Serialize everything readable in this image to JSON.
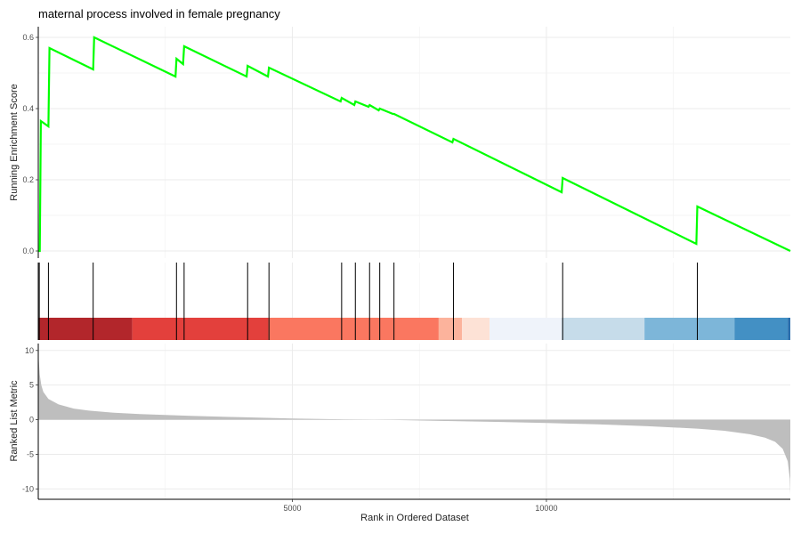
{
  "chart_data": {
    "type": "line",
    "title": "maternal process involved in female pregnancy",
    "xlabel": "Rank in Ordered Dataset",
    "x_range": [
      0,
      14800
    ],
    "x_ticks": [
      5000,
      10000
    ],
    "x_tick_labels": [
      "5000",
      "10000"
    ],
    "grid": true,
    "legend": "none",
    "panels": {
      "running_score": {
        "ylabel": "Running Enrichment Score",
        "ylim": [
          -0.02,
          0.63
        ],
        "y_ticks": [
          0.0,
          0.2,
          0.4,
          0.6
        ],
        "y_tick_labels": [
          "0.0",
          "0.2",
          "0.4",
          "0.6"
        ],
        "color": "#00ff00",
        "x": [
          0,
          30,
          50,
          200,
          220,
          1080,
          1100,
          2700,
          2720,
          2850,
          2870,
          4100,
          4120,
          4520,
          4540,
          5950,
          5970,
          6220,
          6240,
          6500,
          6520,
          6700,
          6720,
          6980,
          7000,
          8150,
          8170,
          10300,
          10320,
          12950,
          12970,
          14800
        ],
        "y": [
          0.0,
          0.0,
          0.365,
          0.35,
          0.57,
          0.51,
          0.6,
          0.49,
          0.54,
          0.525,
          0.575,
          0.49,
          0.52,
          0.49,
          0.515,
          0.42,
          0.43,
          0.41,
          0.42,
          0.405,
          0.41,
          0.395,
          0.4,
          0.385,
          0.385,
          0.305,
          0.315,
          0.165,
          0.205,
          0.02,
          0.125,
          0.0
        ]
      },
      "hits": {
        "x": [
          20,
          200,
          1080,
          2720,
          2870,
          4120,
          4540,
          5970,
          6240,
          6520,
          6720,
          7000,
          8170,
          10320,
          12970
        ],
        "color": "#000000",
        "bands": [
          {
            "start": 0,
            "end": 1850,
            "color": "#b2262b"
          },
          {
            "start": 1850,
            "end": 4530,
            "color": "#e3403c"
          },
          {
            "start": 4530,
            "end": 7880,
            "color": "#fa7760"
          },
          {
            "start": 7880,
            "end": 8340,
            "color": "#fcb39c"
          },
          {
            "start": 8340,
            "end": 8880,
            "color": "#fde2d6"
          },
          {
            "start": 8880,
            "end": 10300,
            "color": "#eff3fa"
          },
          {
            "start": 10300,
            "end": 11930,
            "color": "#c6dcea"
          },
          {
            "start": 11930,
            "end": 13700,
            "color": "#7db6d9"
          },
          {
            "start": 13700,
            "end": 14750,
            "color": "#4390c4"
          },
          {
            "start": 14750,
            "end": 14800,
            "color": "#2a6ead"
          }
        ]
      },
      "ranked_metric": {
        "ylabel": "Ranked List Metric",
        "ylim": [
          -11.5,
          11
        ],
        "y_ticks": [
          10,
          5,
          0,
          -5,
          -10
        ],
        "y_tick_labels": [
          "10",
          "5",
          "0",
          "-5",
          "-10"
        ],
        "fill": "#bebebe",
        "x": [
          0,
          10,
          30,
          60,
          100,
          200,
          400,
          700,
          1000,
          1500,
          2000,
          3000,
          4000,
          5000,
          6000,
          7000,
          8000,
          9000,
          10000,
          11000,
          12000,
          13000,
          13500,
          14000,
          14300,
          14500,
          14650,
          14750,
          14790,
          14800
        ],
        "y": [
          10.5,
          8.5,
          6.5,
          5.0,
          4.0,
          3.0,
          2.2,
          1.6,
          1.3,
          1.0,
          0.8,
          0.55,
          0.35,
          0.18,
          0.05,
          -0.05,
          -0.18,
          -0.32,
          -0.48,
          -0.68,
          -0.95,
          -1.3,
          -1.6,
          -2.1,
          -2.6,
          -3.2,
          -4.2,
          -6.0,
          -8.5,
          -10.8
        ]
      }
    }
  }
}
